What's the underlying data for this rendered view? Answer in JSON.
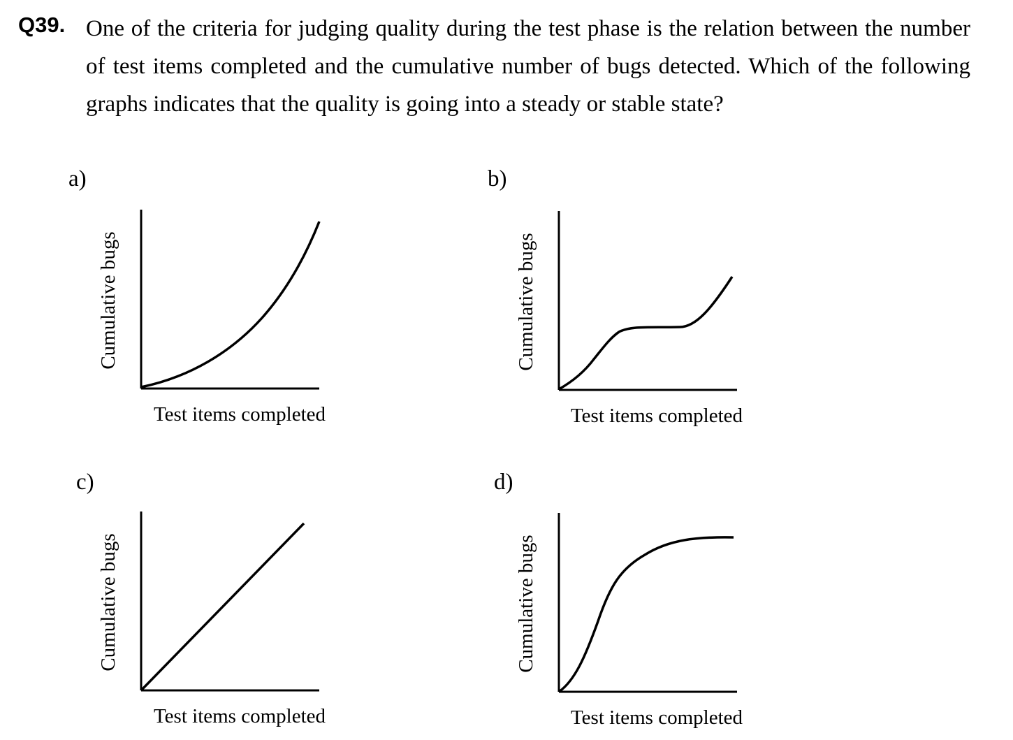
{
  "question": {
    "number": "Q39.",
    "text": "One of the criteria for judging quality during the test phase is the relation between the number of test items completed and the cumulative number of bugs detected.   Which of the following graphs indicates that the quality is going into a steady or stable state?"
  },
  "options": [
    {
      "label": "a)",
      "xlabel": "Test items completed",
      "ylabel": "Cumulative bugs",
      "curve": "accelerating"
    },
    {
      "label": "b)",
      "xlabel": "Test items completed",
      "ylabel": "Cumulative bugs",
      "curve": "plateau-then-rise"
    },
    {
      "label": "c)",
      "xlabel": "Test items completed",
      "ylabel": "Cumulative bugs",
      "curve": "linear"
    },
    {
      "label": "d)",
      "xlabel": "Test items completed",
      "ylabel": "Cumulative bugs",
      "curve": "saturating"
    }
  ]
}
